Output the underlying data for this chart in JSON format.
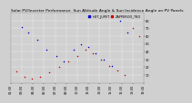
{
  "title": "Solar PV/Inverter Performance  Sun Altitude Angle & Sun Incidence Angle on PV Panels",
  "legend_labels": [
    "HOT_JUPET",
    "ZAPPEROO_TBO"
  ],
  "legend_colors": [
    "#0000cc",
    "#cc0000"
  ],
  "ylim": [
    0,
    90
  ],
  "yticks": [
    10,
    20,
    30,
    40,
    50,
    60,
    70,
    80
  ],
  "background_color": "#d0d0d0",
  "grid_color": "#ffffff",
  "title_fontsize": 3.2,
  "legend_fontsize": 2.5,
  "tick_fontsize": 2.5,
  "blue_x": [
    0.08,
    0.13,
    0.2,
    0.27,
    0.34,
    0.4,
    0.47,
    0.53,
    0.58,
    0.64,
    0.7,
    0.76,
    0.82,
    0.88
  ],
  "blue_y": [
    72,
    65,
    55,
    42,
    35,
    28,
    42,
    50,
    46,
    38,
    30,
    22,
    80,
    65
  ],
  "red_x": [
    0.04,
    0.1,
    0.16,
    0.22,
    0.29,
    0.36,
    0.43,
    0.5,
    0.56,
    0.62,
    0.68,
    0.74,
    0.8,
    0.86,
    0.92,
    0.97
  ],
  "red_y": [
    15,
    8,
    5,
    8,
    14,
    20,
    28,
    35,
    42,
    38,
    30,
    22,
    16,
    10,
    70,
    60
  ],
  "x_tick_labels": [
    "01:30",
    "03:00",
    "04:30",
    "06:00",
    "07:30",
    "09:00",
    "10:30",
    "12:00",
    "13:30",
    "15:00",
    "16:30",
    "18:00",
    "19:30"
  ],
  "x_tick_pos": [
    0.0,
    0.083,
    0.167,
    0.25,
    0.333,
    0.417,
    0.5,
    0.583,
    0.667,
    0.75,
    0.833,
    0.917,
    1.0
  ]
}
